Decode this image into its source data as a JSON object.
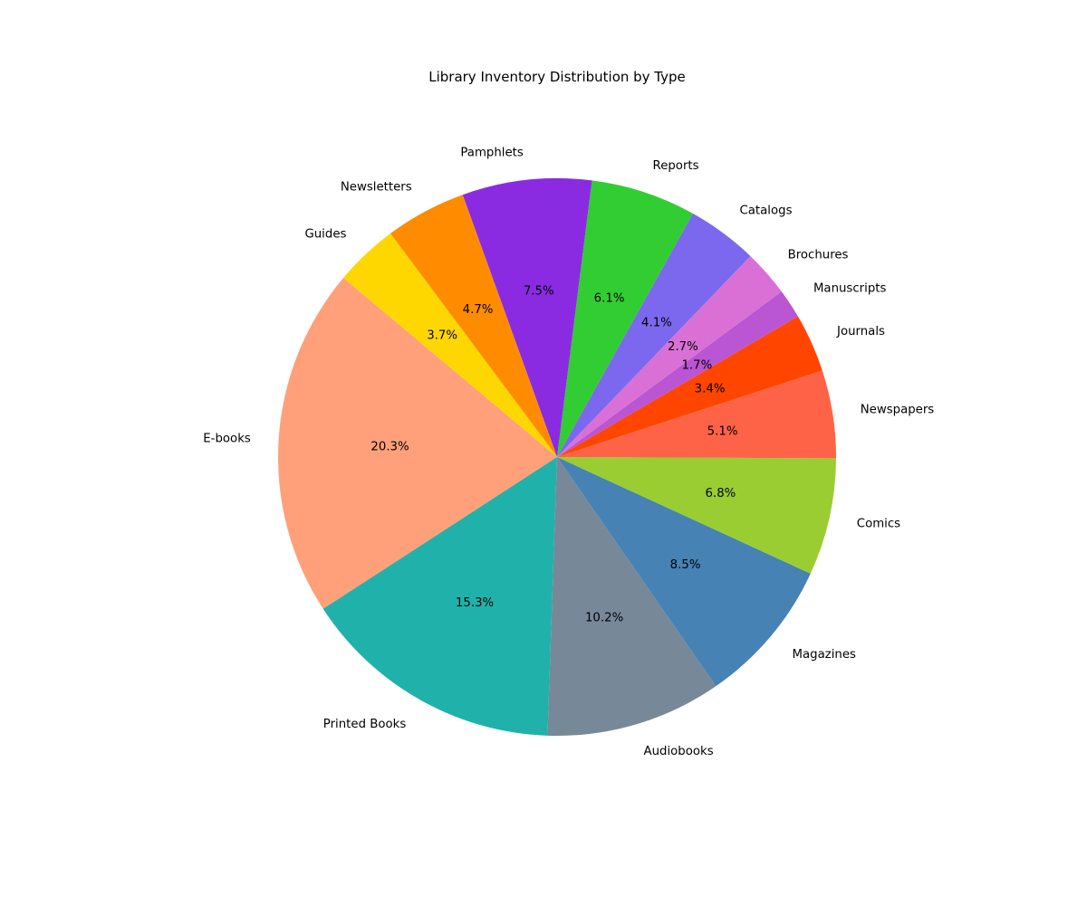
{
  "chart_data": {
    "type": "pie",
    "title": "Library Inventory Distribution by Type",
    "start_angle_deg": 140,
    "direction": "counterclockwise",
    "slices": [
      {
        "label": "E-books",
        "value": 20.3,
        "pct_label": "20.3%",
        "color": "#FFA07A"
      },
      {
        "label": "Printed Books",
        "value": 15.3,
        "pct_label": "15.3%",
        "color": "#20B2AA"
      },
      {
        "label": "Audiobooks",
        "value": 10.2,
        "pct_label": "10.2%",
        "color": "#778899"
      },
      {
        "label": "Magazines",
        "value": 8.5,
        "pct_label": "8.5%",
        "color": "#4682B4"
      },
      {
        "label": "Comics",
        "value": 6.8,
        "pct_label": "6.8%",
        "color": "#9ACD32"
      },
      {
        "label": "Newspapers",
        "value": 5.1,
        "pct_label": "5.1%",
        "color": "#FF6347"
      },
      {
        "label": "Journals",
        "value": 3.4,
        "pct_label": "3.4%",
        "color": "#FF4500"
      },
      {
        "label": "Manuscripts",
        "value": 1.7,
        "pct_label": "1.7%",
        "color": "#BA55D3"
      },
      {
        "label": "Brochures",
        "value": 2.7,
        "pct_label": "2.7%",
        "color": "#DA70D6"
      },
      {
        "label": "Catalogs",
        "value": 4.1,
        "pct_label": "4.1%",
        "color": "#7B68EE"
      },
      {
        "label": "Reports",
        "value": 6.1,
        "pct_label": "6.1%",
        "color": "#32CD32"
      },
      {
        "label": "Pamphlets",
        "value": 7.5,
        "pct_label": "7.5%",
        "color": "#8A2BE2"
      },
      {
        "label": "Newsletters",
        "value": 4.7,
        "pct_label": "4.7%",
        "color": "#FF8C00"
      },
      {
        "label": "Guides",
        "value": 3.7,
        "pct_label": "3.7%",
        "color": "#FFD700"
      }
    ]
  }
}
